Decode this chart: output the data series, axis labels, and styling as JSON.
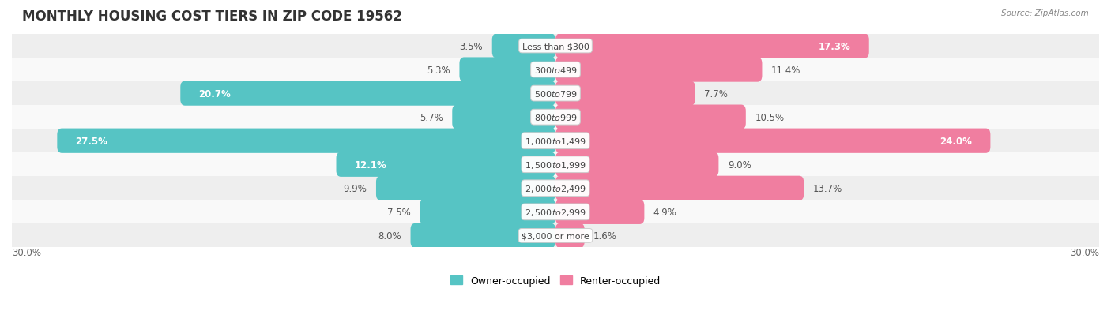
{
  "title": "MONTHLY HOUSING COST TIERS IN ZIP CODE 19562",
  "source": "Source: ZipAtlas.com",
  "categories": [
    "Less than $300",
    "$300 to $499",
    "$500 to $799",
    "$800 to $999",
    "$1,000 to $1,499",
    "$1,500 to $1,999",
    "$2,000 to $2,499",
    "$2,500 to $2,999",
    "$3,000 or more"
  ],
  "owner": [
    3.5,
    5.3,
    20.7,
    5.7,
    27.5,
    12.1,
    9.9,
    7.5,
    8.0
  ],
  "renter": [
    17.3,
    11.4,
    7.7,
    10.5,
    24.0,
    9.0,
    13.7,
    4.9,
    1.6
  ],
  "owner_color": "#56C4C4",
  "renter_color": "#F07EA0",
  "row_colors": [
    "#eeeeee",
    "#f9f9f9"
  ],
  "axis_limit": 30.0,
  "bar_height": 0.52,
  "title_fontsize": 12,
  "label_fontsize": 8.5,
  "cat_fontsize": 8.0,
  "tick_fontsize": 8.5,
  "legend_fontsize": 9,
  "owner_inside_threshold": 12.0,
  "renter_inside_threshold": 15.0
}
